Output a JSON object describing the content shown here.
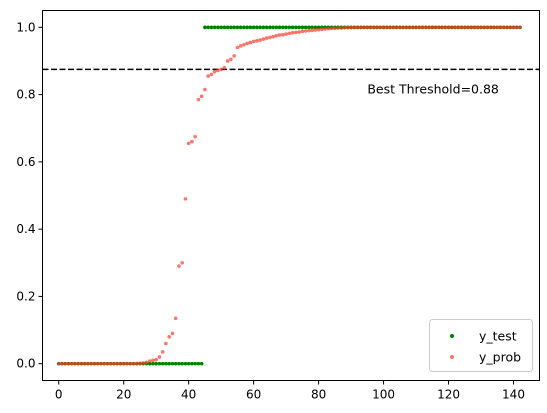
{
  "chart_data": {
    "type": "scatter",
    "title": "",
    "xlabel": "",
    "ylabel": "",
    "xlim": [
      -5,
      148
    ],
    "ylim": [
      -0.05,
      1.05
    ],
    "xticks": [
      0,
      20,
      40,
      60,
      80,
      100,
      120,
      140
    ],
    "yticks": [
      0.0,
      0.2,
      0.4,
      0.6,
      0.8,
      1.0
    ],
    "xtick_labels": [
      "0",
      "20",
      "40",
      "60",
      "80",
      "100",
      "120",
      "140"
    ],
    "ytick_labels": [
      "0.0",
      "0.2",
      "0.4",
      "0.6",
      "0.8",
      "1.0"
    ],
    "grid": false,
    "legend_position": "lower-right",
    "threshold": {
      "value": 0.875,
      "label": "Best Threshold=0.88",
      "color": "#000000",
      "style": "dashed"
    },
    "series": [
      {
        "name": "y_test",
        "color": "#008000",
        "segments": [
          {
            "x_start": 0,
            "x_end": 44,
            "y": 0
          },
          {
            "x_start": 45,
            "x_end": 142,
            "y": 1
          }
        ]
      },
      {
        "name": "y_prob",
        "color": "#ff3b2f",
        "points": [
          [
            0,
            0
          ],
          [
            1,
            0
          ],
          [
            2,
            0
          ],
          [
            3,
            0
          ],
          [
            4,
            0
          ],
          [
            5,
            0
          ],
          [
            6,
            0
          ],
          [
            7,
            0
          ],
          [
            8,
            0
          ],
          [
            9,
            0
          ],
          [
            10,
            0
          ],
          [
            11,
            0
          ],
          [
            12,
            0
          ],
          [
            13,
            0
          ],
          [
            14,
            0
          ],
          [
            15,
            0
          ],
          [
            16,
            0
          ],
          [
            17,
            0
          ],
          [
            18,
            0
          ],
          [
            19,
            0
          ],
          [
            20,
            0
          ],
          [
            21,
            0
          ],
          [
            22,
            0
          ],
          [
            23,
            0
          ],
          [
            24,
            0
          ],
          [
            25,
            0.001
          ],
          [
            26,
            0.002
          ],
          [
            27,
            0.004
          ],
          [
            28,
            0.008
          ],
          [
            29,
            0.01
          ],
          [
            30,
            0.012
          ],
          [
            31,
            0.02
          ],
          [
            32,
            0.035
          ],
          [
            33,
            0.06
          ],
          [
            34,
            0.08
          ],
          [
            35,
            0.09
          ],
          [
            36,
            0.135
          ],
          [
            37,
            0.29
          ],
          [
            38,
            0.3
          ],
          [
            39,
            0.49
          ],
          [
            40,
            0.655
          ],
          [
            41,
            0.66
          ],
          [
            42,
            0.675
          ],
          [
            43,
            0.785
          ],
          [
            44,
            0.795
          ],
          [
            45,
            0.815
          ],
          [
            46,
            0.855
          ],
          [
            47,
            0.86
          ],
          [
            48,
            0.868
          ],
          [
            49,
            0.872
          ],
          [
            50,
            0.875
          ],
          [
            51,
            0.88
          ],
          [
            52,
            0.9
          ],
          [
            53,
            0.905
          ],
          [
            54,
            0.915
          ],
          [
            55,
            0.94
          ],
          [
            56,
            0.945
          ],
          [
            57,
            0.948
          ],
          [
            58,
            0.952
          ],
          [
            59,
            0.955
          ],
          [
            60,
            0.958
          ],
          [
            61,
            0.96
          ],
          [
            62,
            0.962
          ],
          [
            63,
            0.965
          ],
          [
            64,
            0.968
          ],
          [
            65,
            0.97
          ],
          [
            66,
            0.972
          ],
          [
            67,
            0.975
          ],
          [
            68,
            0.977
          ],
          [
            69,
            0.978
          ],
          [
            70,
            0.98
          ],
          [
            71,
            0.982
          ],
          [
            72,
            0.984
          ],
          [
            73,
            0.985
          ],
          [
            74,
            0.986
          ],
          [
            75,
            0.988
          ],
          [
            76,
            0.989
          ],
          [
            77,
            0.99
          ],
          [
            78,
            0.991
          ],
          [
            79,
            0.992
          ],
          [
            80,
            0.993
          ],
          [
            81,
            0.994
          ],
          [
            82,
            0.995
          ],
          [
            83,
            0.996
          ],
          [
            84,
            0.997
          ],
          [
            85,
            0.997
          ],
          [
            86,
            0.998
          ],
          [
            87,
            0.998
          ],
          [
            88,
            0.999
          ],
          [
            89,
            0.999
          ],
          [
            90,
            0.999
          ],
          [
            91,
            1
          ],
          [
            92,
            1
          ],
          [
            93,
            1
          ],
          [
            94,
            1
          ],
          [
            95,
            1
          ],
          [
            96,
            1
          ],
          [
            97,
            1
          ],
          [
            98,
            1
          ],
          [
            99,
            1
          ],
          [
            100,
            1
          ],
          [
            101,
            1
          ],
          [
            102,
            1
          ],
          [
            103,
            1
          ],
          [
            104,
            1
          ],
          [
            105,
            1
          ],
          [
            106,
            1
          ],
          [
            107,
            1
          ],
          [
            108,
            1
          ],
          [
            109,
            1
          ],
          [
            110,
            1
          ],
          [
            111,
            1
          ],
          [
            112,
            1
          ],
          [
            113,
            1
          ],
          [
            114,
            1
          ],
          [
            115,
            1
          ],
          [
            116,
            1
          ],
          [
            117,
            1
          ],
          [
            118,
            1
          ],
          [
            119,
            1
          ],
          [
            120,
            1
          ],
          [
            121,
            1
          ],
          [
            122,
            1
          ],
          [
            123,
            1
          ],
          [
            124,
            1
          ],
          [
            125,
            1
          ],
          [
            126,
            1
          ],
          [
            127,
            1
          ],
          [
            128,
            1
          ],
          [
            129,
            1
          ],
          [
            130,
            1
          ],
          [
            131,
            1
          ],
          [
            132,
            1
          ],
          [
            133,
            1
          ],
          [
            134,
            1
          ],
          [
            135,
            1
          ],
          [
            136,
            1
          ],
          [
            137,
            1
          ],
          [
            138,
            1
          ],
          [
            139,
            1
          ],
          [
            140,
            1
          ],
          [
            141,
            1
          ],
          [
            142,
            1
          ]
        ]
      }
    ]
  }
}
